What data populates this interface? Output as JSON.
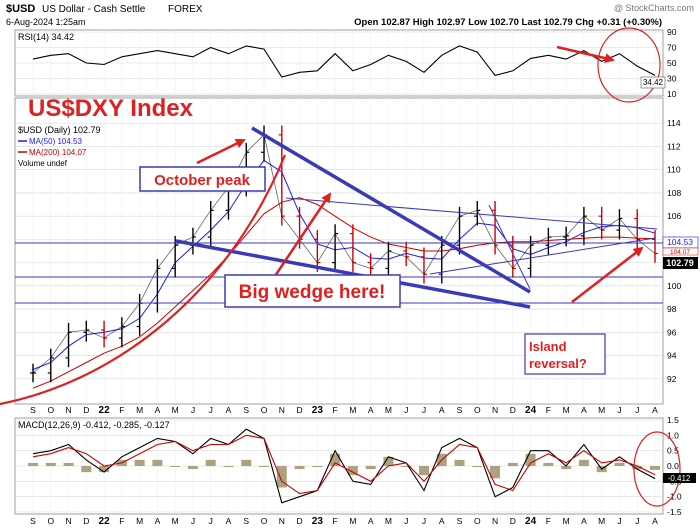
{
  "header": {
    "symbol": "$USD",
    "name": "US Dollar - Cash Settle",
    "exchange": "FOREX",
    "date_line": "6-Aug-2024 1:25am",
    "watermark": "@ StockCharts.com",
    "quote_line": "Open 102.87   High 102.97   Low 102.70   Last 102.79   Chg +0.31 (+0.30%)"
  },
  "rsi": {
    "label": "RSI(14) 34.42",
    "last_value_label": "34.42",
    "ticks": [
      "90",
      "70",
      "50",
      "30",
      "10"
    ]
  },
  "main": {
    "title": "US$DXY Index",
    "legend": {
      "symbol_line": "$USD (Daily) 102.79",
      "ma50": "MA(50) 104.53",
      "ma200": "MA(200) 104.07",
      "volume": "Volume undef"
    },
    "y_ticks": [
      "114",
      "112",
      "110",
      "108",
      "106",
      "104",
      "102",
      "100",
      "98",
      "96",
      "94",
      "92"
    ],
    "tag_ma50": "104.53",
    "tag_ma200": "104.07",
    "tag_last": "102.79",
    "annotations": {
      "october_peak": "October peak",
      "big_wedge": "Big wedge here!",
      "island_reversal_1": "Island",
      "island_reversal_2": "reversal?"
    }
  },
  "x_axis": {
    "labels": [
      "S",
      "O",
      "N",
      "D",
      "22",
      "F",
      "M",
      "A",
      "M",
      "J",
      "J",
      "A",
      "S",
      "O",
      "N",
      "D",
      "23",
      "F",
      "M",
      "A",
      "M",
      "J",
      "J",
      "A",
      "S",
      "O",
      "N",
      "D",
      "24",
      "F",
      "M",
      "A",
      "M",
      "J",
      "J",
      "A"
    ]
  },
  "macd": {
    "label": "MACD(12,26,9) -0.412, -0.285, -0.127",
    "value_tag": "-0.412",
    "ticks": [
      "1.5",
      "1.0",
      "0.5",
      "0.0",
      "-0.5",
      "-1.0",
      "-1.5"
    ]
  },
  "colors": {
    "price_up": "#000000",
    "price_down": "#cc0000",
    "ma50": "#1a1aff",
    "ma200": "#cc0000",
    "trendline": "#3a3ab8",
    "annotation_red": "#e02020",
    "macd_line": "#000000",
    "macd_signal": "#cc0000",
    "histogram": "#9a8a60"
  },
  "chart_data": [
    {
      "type": "line",
      "title": "RSI(14) 34.42",
      "ylim": [
        10,
        90
      ],
      "x": [
        "2021-09",
        "2021-10",
        "2021-11",
        "2021-12",
        "2022-01",
        "2022-02",
        "2022-03",
        "2022-04",
        "2022-05",
        "2022-06",
        "2022-07",
        "2022-08",
        "2022-09",
        "2022-10",
        "2022-11",
        "2022-12",
        "2023-01",
        "2023-02",
        "2023-03",
        "2023-04",
        "2023-05",
        "2023-06",
        "2023-07",
        "2023-08",
        "2023-09",
        "2023-10",
        "2023-11",
        "2023-12",
        "2024-01",
        "2024-02",
        "2024-03",
        "2024-04",
        "2024-05",
        "2024-06",
        "2024-07",
        "2024-08"
      ],
      "series": [
        {
          "values": [
            55,
            60,
            62,
            50,
            48,
            58,
            62,
            66,
            62,
            58,
            70,
            62,
            72,
            68,
            32,
            38,
            40,
            62,
            40,
            48,
            60,
            52,
            38,
            60,
            72,
            64,
            34,
            40,
            56,
            60,
            55,
            66,
            52,
            62,
            46,
            34
          ]
        }
      ]
    },
    {
      "type": "line",
      "title": "US$DXY Index",
      "ylabel": "",
      "ylim": [
        90,
        116
      ],
      "x": [
        "2021-09",
        "2021-10",
        "2021-11",
        "2021-12",
        "2022-01",
        "2022-02",
        "2022-03",
        "2022-04",
        "2022-05",
        "2022-06",
        "2022-07",
        "2022-08",
        "2022-09",
        "2022-10",
        "2022-11",
        "2022-12",
        "2023-01",
        "2023-02",
        "2023-03",
        "2023-04",
        "2023-05",
        "2023-06",
        "2023-07",
        "2023-08",
        "2023-09",
        "2023-10",
        "2023-11",
        "2023-12",
        "2024-01",
        "2024-02",
        "2024-03",
        "2024-04",
        "2024-05",
        "2024-06",
        "2024-07",
        "2024-08"
      ],
      "series": [
        {
          "name": "$USD (Daily)",
          "values": [
            92.5,
            93.8,
            96.0,
            96.2,
            95.5,
            96.5,
            98.5,
            101.5,
            103.5,
            104.2,
            106.5,
            108.5,
            111.5,
            113.0,
            106.0,
            104.0,
            102.0,
            104.5,
            102.0,
            101.5,
            103.0,
            102.5,
            101.0,
            103.5,
            106.0,
            106.5,
            103.5,
            101.5,
            103.5,
            104.2,
            104.3,
            106.0,
            104.8,
            105.8,
            104.0,
            102.79
          ]
        },
        {
          "name": "MA(50)",
          "values": [
            92.8,
            93.4,
            94.8,
            95.8,
            96.0,
            96.3,
            97.2,
            99.3,
            102.0,
            103.4,
            104.8,
            106.4,
            108.8,
            110.8,
            109.8,
            106.2,
            103.6,
            103.1,
            103.3,
            102.4,
            102.3,
            102.8,
            102.4,
            102.3,
            104.0,
            105.4,
            105.2,
            103.2,
            102.7,
            103.3,
            103.8,
            104.6,
            105.1,
            105.2,
            105.0,
            104.53
          ]
        },
        {
          "name": "MA(200)",
          "values": [
            91.2,
            91.8,
            92.6,
            93.4,
            94.2,
            94.8,
            95.6,
            96.8,
            98.2,
            99.6,
            101.0,
            102.6,
            104.4,
            106.2,
            107.2,
            107.6,
            107.0,
            106.0,
            105.0,
            104.2,
            103.6,
            103.3,
            103.0,
            103.0,
            103.2,
            103.5,
            103.7,
            103.8,
            103.8,
            103.9,
            104.0,
            104.1,
            104.2,
            104.2,
            104.1,
            104.07
          ]
        }
      ]
    },
    {
      "type": "line",
      "title": "MACD(12,26,9) -0.412, -0.285, -0.127",
      "ylim": [
        -1.5,
        1.5
      ],
      "x": [
        "2021-09",
        "2021-10",
        "2021-11",
        "2021-12",
        "2022-01",
        "2022-02",
        "2022-03",
        "2022-04",
        "2022-05",
        "2022-06",
        "2022-07",
        "2022-08",
        "2022-09",
        "2022-10",
        "2022-11",
        "2022-12",
        "2023-01",
        "2023-02",
        "2023-03",
        "2023-04",
        "2023-05",
        "2023-06",
        "2023-07",
        "2023-08",
        "2023-09",
        "2023-10",
        "2023-11",
        "2023-12",
        "2024-01",
        "2024-02",
        "2024-03",
        "2024-04",
        "2024-05",
        "2024-06",
        "2024-07",
        "2024-08"
      ],
      "series": [
        {
          "name": "MACD",
          "values": [
            0.4,
            0.5,
            0.7,
            0.2,
            -0.2,
            0.3,
            0.6,
            0.9,
            0.8,
            0.4,
            0.9,
            0.7,
            1.2,
            0.9,
            -1.2,
            -1.0,
            -0.8,
            0.5,
            -0.5,
            -0.6,
            0.3,
            0.1,
            -0.8,
            0.6,
            0.9,
            0.6,
            -1.0,
            -0.7,
            0.5,
            0.5,
            0.0,
            0.7,
            -0.1,
            0.3,
            -0.1,
            -0.412
          ]
        },
        {
          "name": "Signal",
          "values": [
            0.3,
            0.4,
            0.6,
            0.4,
            0.0,
            0.1,
            0.4,
            0.7,
            0.8,
            0.5,
            0.7,
            0.7,
            1.0,
            0.9,
            -0.5,
            -0.9,
            -0.8,
            0.1,
            -0.2,
            -0.5,
            0.0,
            0.1,
            -0.5,
            0.2,
            0.7,
            0.6,
            -0.6,
            -0.8,
            0.1,
            0.4,
            0.1,
            0.5,
            0.1,
            0.2,
            0.0,
            -0.285
          ]
        }
      ]
    }
  ]
}
